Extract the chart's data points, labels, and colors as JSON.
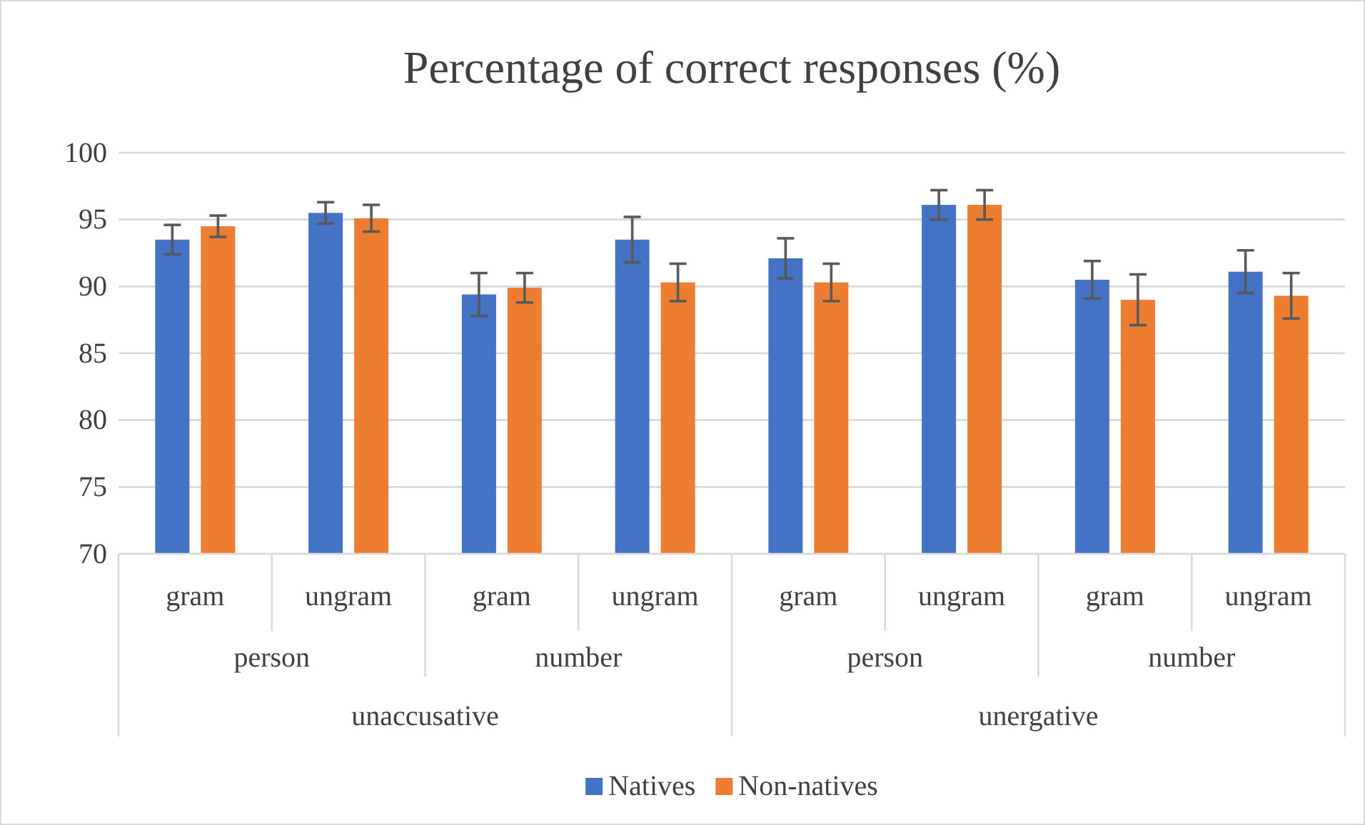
{
  "chart_data": {
    "type": "bar",
    "title": "Percentage of correct responses (%)",
    "categories": [
      "gram",
      "ungram",
      "gram",
      "ungram",
      "gram",
      "ungram",
      "gram",
      "ungram"
    ],
    "series": [
      {
        "name": "Natives",
        "color": "#4472c4",
        "values": [
          93.5,
          95.5,
          89.4,
          93.5,
          92.1,
          96.1,
          90.5,
          91.1
        ],
        "errors": [
          1.1,
          0.8,
          1.6,
          1.7,
          1.5,
          1.1,
          1.4,
          1.6
        ]
      },
      {
        "name": "Non-natives",
        "color": "#ed7d31",
        "values": [
          94.5,
          95.1,
          89.9,
          90.3,
          90.3,
          96.1,
          89.0,
          89.3
        ],
        "errors": [
          0.8,
          1.0,
          1.1,
          1.4,
          1.4,
          1.1,
          1.9,
          1.7
        ]
      }
    ],
    "annotations": [
      "person",
      "number",
      "person",
      "number",
      "unaccusative",
      "unergative"
    ],
    "ylim": [
      70,
      100
    ],
    "yticks": [
      70,
      75,
      80,
      85,
      90,
      95,
      100
    ],
    "grid": "y",
    "legend": "bottom"
  }
}
